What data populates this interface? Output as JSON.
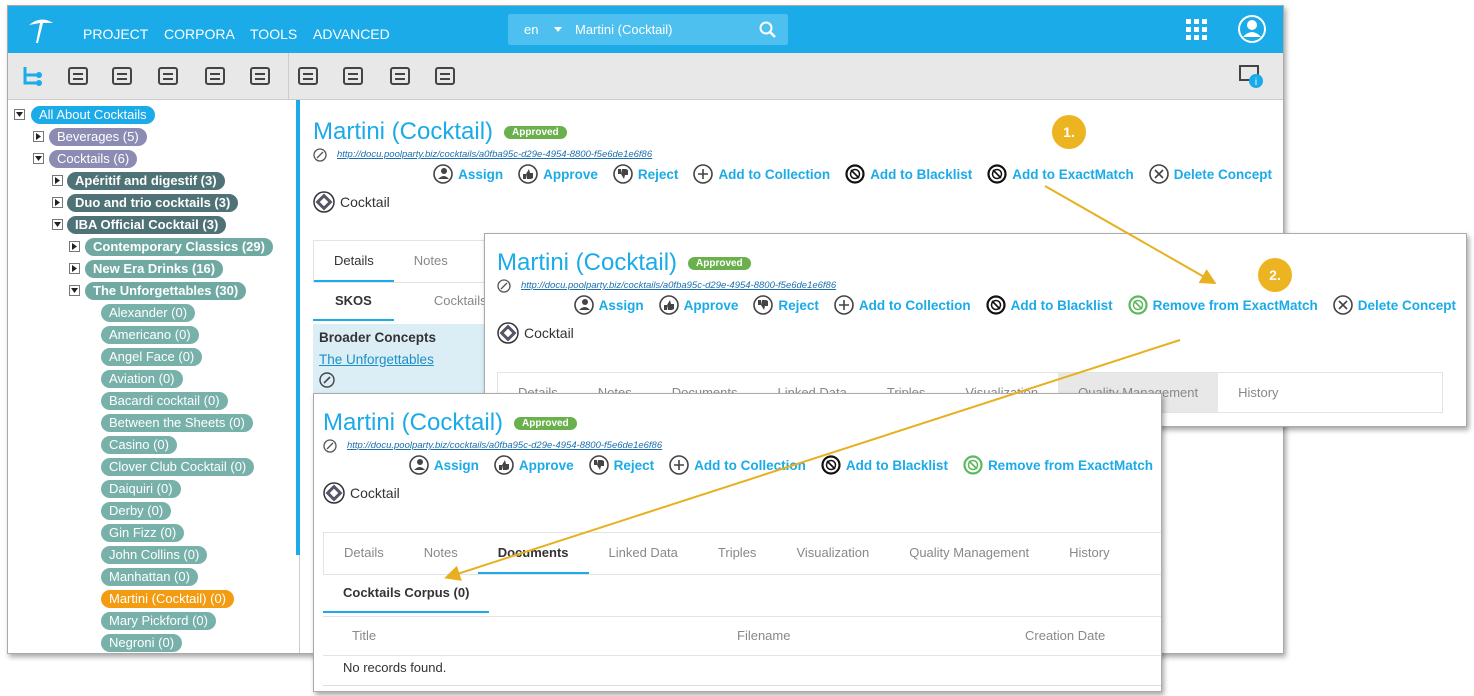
{
  "nav": {
    "menu": [
      "PROJECT",
      "CORPORA",
      "TOOLS",
      "ADVANCED"
    ],
    "lang": "en",
    "search": "Martini (Cocktail)"
  },
  "tree": [
    {
      "label": "All About Cocktails",
      "level": 0,
      "state": "expanded"
    },
    {
      "label": "Beverages (5)",
      "level": 1,
      "state": "collapsed"
    },
    {
      "label": "Cocktails (6)",
      "level": 1,
      "state": "expanded"
    },
    {
      "label": "Apéritif and digestif (3)",
      "level": 2,
      "state": "collapsed"
    },
    {
      "label": "Duo and trio cocktails (3)",
      "level": 2,
      "state": "collapsed"
    },
    {
      "label": "IBA Official Cocktail (3)",
      "level": 2,
      "state": "expanded"
    },
    {
      "label": "Contemporary Classics (29)",
      "level": 3,
      "state": "collapsed"
    },
    {
      "label": "New Era Drinks (16)",
      "level": 3,
      "state": "collapsed"
    },
    {
      "label": "The Unforgettables (30)",
      "level": 3,
      "state": "expanded"
    },
    {
      "label": "Alexander (0)",
      "level": 4,
      "state": "leaf"
    },
    {
      "label": "Americano (0)",
      "level": 4,
      "state": "leaf"
    },
    {
      "label": "Angel Face (0)",
      "level": 4,
      "state": "leaf"
    },
    {
      "label": "Aviation (0)",
      "level": 4,
      "state": "leaf"
    },
    {
      "label": "Bacardi cocktail (0)",
      "level": 4,
      "state": "leaf"
    },
    {
      "label": "Between the Sheets (0)",
      "level": 4,
      "state": "leaf"
    },
    {
      "label": "Casino (0)",
      "level": 4,
      "state": "leaf"
    },
    {
      "label": "Clover Club Cocktail (0)",
      "level": 4,
      "state": "leaf"
    },
    {
      "label": "Daiquiri (0)",
      "level": 4,
      "state": "leaf"
    },
    {
      "label": "Derby (0)",
      "level": 4,
      "state": "leaf"
    },
    {
      "label": "Gin Fizz (0)",
      "level": 4,
      "state": "leaf"
    },
    {
      "label": "John Collins (0)",
      "level": 4,
      "state": "leaf"
    },
    {
      "label": "Manhattan (0)",
      "level": 4,
      "state": "leaf"
    },
    {
      "label": "Martini (Cocktail) (0)",
      "level": 4,
      "state": "leaf",
      "selected": true
    },
    {
      "label": "Mary Pickford (0)",
      "level": 4,
      "state": "leaf"
    },
    {
      "label": "Negroni (0)",
      "level": 4,
      "state": "leaf"
    }
  ],
  "main": {
    "title": "Martini (Cocktail)",
    "status": "Approved",
    "uri": "http://docu.poolparty.biz/cocktails/a0fba95c-d29e-4954-8800-f5e6de1e6f86",
    "actions": [
      "Assign",
      "Approve",
      "Reject",
      "Add to Collection",
      "Add to Blacklist",
      "Add to ExactMatch",
      "Delete Concept"
    ],
    "type": "Cocktail",
    "tabs": [
      "Details",
      "Notes"
    ],
    "subtabs": [
      "SKOS",
      "Cocktails"
    ],
    "section": "Broader Concepts",
    "link": "The Unforgettables"
  },
  "step1": {
    "title": "Martini (Cocktail)",
    "status": "Approved",
    "uri": "http://docu.poolparty.biz/cocktails/a0fba95c-d29e-4954-8800-f5e6de1e6f86",
    "actions": [
      "Assign",
      "Approve",
      "Reject",
      "Add to Collection",
      "Add to Blacklist",
      "Remove from ExactMatch",
      "Delete Concept"
    ],
    "type": "Cocktail",
    "tabs": [
      "Details",
      "Notes",
      "Documents",
      "Linked Data",
      "Triples",
      "Visualization",
      "Quality Management",
      "History"
    ]
  },
  "step2": {
    "title": "Martini (Cocktail)",
    "status": "Approved",
    "uri": "http://docu.poolparty.biz/cocktails/a0fba95c-d29e-4954-8800-f5e6de1e6f86",
    "actions": [
      "Assign",
      "Approve",
      "Reject",
      "Add to Collection",
      "Add to Blacklist",
      "Remove from ExactMatch"
    ],
    "type": "Cocktail",
    "tabs": [
      "Details",
      "Notes",
      "Documents",
      "Linked Data",
      "Triples",
      "Visualization",
      "Quality Management",
      "History"
    ],
    "subtab": "Cocktails Corpus (0)",
    "columns": [
      "Title",
      "Filename",
      "Creation Date"
    ],
    "empty": "No records found."
  },
  "callouts": [
    "1.",
    "2."
  ]
}
